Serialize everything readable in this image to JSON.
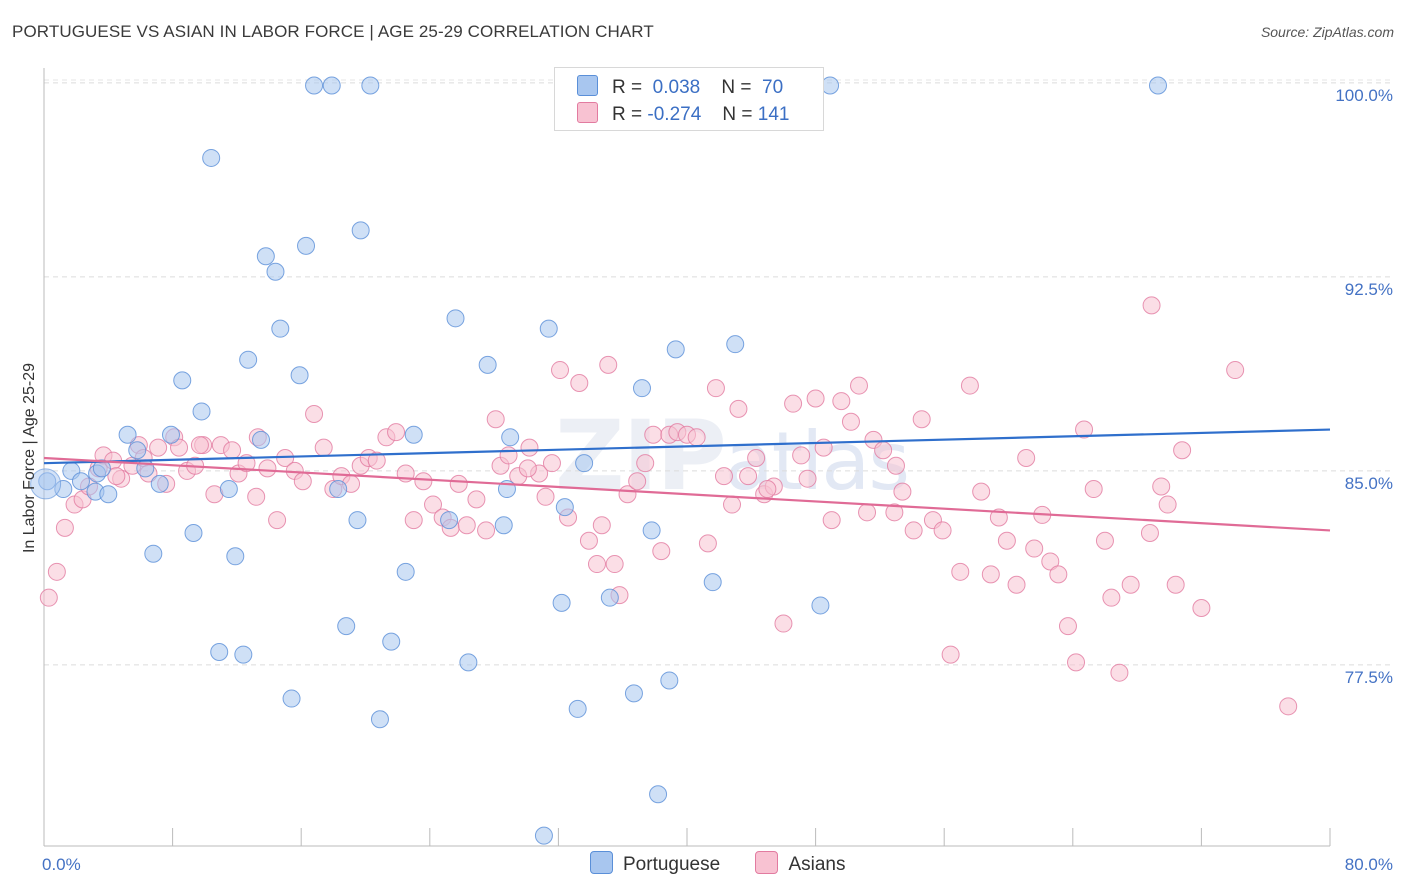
{
  "header": {
    "title": "PORTUGUESE VS ASIAN IN LABOR FORCE | AGE 25-29 CORRELATION CHART",
    "source": "Source: ZipAtlas.com"
  },
  "legend": {
    "rows": [
      {
        "r_label": "R =",
        "r_value": "0.038",
        "n_label": "N =",
        "n_value": "70",
        "color": "#a8c6ef",
        "stroke": "#5a8fd8"
      },
      {
        "r_label": "R =",
        "r_value": "-0.274",
        "n_label": "N =",
        "n_value": "141",
        "color": "#f8c2d2",
        "stroke": "#e27ba0"
      }
    ]
  },
  "bottom_legend": {
    "portuguese": "Portuguese",
    "asians": "Asians"
  },
  "watermark": {
    "zip": "ZIP",
    "atlas": "atlas"
  },
  "chart_data": {
    "type": "scatter",
    "title": "PORTUGUESE VS ASIAN IN LABOR FORCE | AGE 25-29 CORRELATION CHART",
    "xlabel": "",
    "ylabel": "In Labor Force | Age 25-29",
    "xlim": [
      0,
      80
    ],
    "ylim": [
      70.5,
      100.5
    ],
    "x_tick_labels": [
      "0.0%",
      "80.0%"
    ],
    "y_ticks": [
      77.5,
      85.0,
      92.5,
      100.0
    ],
    "y_tick_labels": [
      "77.5%",
      "85.0%",
      "92.5%",
      "100.0%"
    ],
    "grid": true,
    "series": [
      {
        "name": "Portuguese",
        "color": "#a8c6ef",
        "stroke": "#5a8fd8",
        "trend": {
          "x0": 0,
          "y0": 85.3,
          "x1": 80,
          "y1": 86.6,
          "color": "#2f6fcc"
        },
        "points": [
          [
            0.2,
            84.6
          ],
          [
            1.2,
            84.3
          ],
          [
            1.7,
            85.0
          ],
          [
            2.3,
            84.6
          ],
          [
            3.2,
            84.2
          ],
          [
            3.3,
            84.9
          ],
          [
            3.6,
            85.1
          ],
          [
            4.0,
            84.1
          ],
          [
            5.2,
            86.4
          ],
          [
            5.8,
            85.8
          ],
          [
            6.3,
            85.1
          ],
          [
            6.8,
            81.8
          ],
          [
            7.2,
            84.5
          ],
          [
            7.9,
            86.4
          ],
          [
            8.6,
            88.5
          ],
          [
            9.3,
            82.6
          ],
          [
            9.8,
            87.3
          ],
          [
            10.4,
            97.1
          ],
          [
            10.9,
            78.0
          ],
          [
            11.5,
            84.3
          ],
          [
            11.9,
            81.7
          ],
          [
            12.4,
            77.9
          ],
          [
            12.7,
            89.3
          ],
          [
            13.5,
            86.2
          ],
          [
            13.8,
            93.3
          ],
          [
            14.4,
            92.7
          ],
          [
            14.7,
            90.5
          ],
          [
            15.4,
            76.2
          ],
          [
            15.9,
            88.7
          ],
          [
            16.3,
            93.7
          ],
          [
            16.8,
            99.9
          ],
          [
            17.9,
            99.9
          ],
          [
            18.3,
            84.3
          ],
          [
            18.8,
            79.0
          ],
          [
            19.5,
            83.1
          ],
          [
            19.7,
            94.3
          ],
          [
            20.3,
            99.9
          ],
          [
            20.9,
            75.4
          ],
          [
            21.6,
            78.4
          ],
          [
            22.5,
            81.1
          ],
          [
            23.0,
            86.4
          ],
          [
            25.2,
            83.1
          ],
          [
            25.6,
            90.9
          ],
          [
            26.4,
            77.6
          ],
          [
            27.6,
            89.1
          ],
          [
            28.6,
            82.9
          ],
          [
            28.8,
            84.3
          ],
          [
            29.0,
            86.3
          ],
          [
            31.1,
            70.9
          ],
          [
            31.4,
            90.5
          ],
          [
            32.2,
            79.9
          ],
          [
            32.4,
            83.6
          ],
          [
            33.2,
            75.8
          ],
          [
            33.6,
            85.3
          ],
          [
            34.9,
            99.9
          ],
          [
            35.2,
            80.1
          ],
          [
            36.7,
            76.4
          ],
          [
            37.2,
            88.2
          ],
          [
            37.8,
            82.7
          ],
          [
            38.2,
            72.5
          ],
          [
            38.9,
            76.9
          ],
          [
            39.3,
            89.7
          ],
          [
            41.6,
            80.7
          ],
          [
            43.0,
            89.9
          ],
          [
            48.3,
            79.8
          ],
          [
            48.9,
            99.9
          ],
          [
            69.3,
            99.9
          ]
        ]
      },
      {
        "name": "Asians",
        "color": "#f8c2d2",
        "stroke": "#e27ba0",
        "trend": {
          "x0": 0,
          "y0": 85.5,
          "x1": 80,
          "y1": 82.7,
          "color": "#e06b96"
        },
        "points": [
          [
            0.3,
            80.1
          ],
          [
            0.8,
            81.1
          ],
          [
            1.3,
            82.8
          ],
          [
            1.9,
            83.7
          ],
          [
            2.4,
            83.9
          ],
          [
            2.8,
            84.4
          ],
          [
            3.4,
            85.1
          ],
          [
            3.7,
            85.6
          ],
          [
            4.3,
            85.4
          ],
          [
            4.8,
            84.7
          ],
          [
            5.5,
            85.2
          ],
          [
            5.9,
            86.0
          ],
          [
            6.2,
            85.5
          ],
          [
            6.5,
            84.9
          ],
          [
            7.1,
            85.9
          ],
          [
            7.6,
            84.5
          ],
          [
            8.1,
            86.3
          ],
          [
            8.4,
            85.9
          ],
          [
            8.9,
            85.0
          ],
          [
            9.4,
            85.2
          ],
          [
            9.9,
            86.0
          ],
          [
            10.6,
            84.1
          ],
          [
            11.0,
            86.0
          ],
          [
            11.7,
            85.8
          ],
          [
            12.1,
            84.9
          ],
          [
            12.6,
            85.3
          ],
          [
            13.2,
            84.0
          ],
          [
            13.9,
            85.1
          ],
          [
            14.5,
            83.1
          ],
          [
            15.0,
            85.5
          ],
          [
            15.6,
            85.0
          ],
          [
            16.1,
            84.6
          ],
          [
            16.8,
            87.2
          ],
          [
            17.4,
            85.9
          ],
          [
            18.0,
            84.3
          ],
          [
            18.5,
            84.8
          ],
          [
            19.1,
            84.5
          ],
          [
            19.7,
            85.2
          ],
          [
            20.2,
            85.5
          ],
          [
            20.7,
            85.4
          ],
          [
            21.3,
            86.3
          ],
          [
            21.9,
            86.5
          ],
          [
            22.5,
            84.9
          ],
          [
            23.0,
            83.1
          ],
          [
            23.6,
            84.6
          ],
          [
            24.2,
            83.7
          ],
          [
            24.8,
            83.2
          ],
          [
            25.3,
            82.8
          ],
          [
            25.8,
            84.5
          ],
          [
            26.3,
            82.9
          ],
          [
            26.9,
            83.9
          ],
          [
            27.5,
            82.7
          ],
          [
            28.1,
            87.0
          ],
          [
            28.4,
            85.2
          ],
          [
            28.9,
            85.6
          ],
          [
            29.5,
            84.8
          ],
          [
            30.2,
            85.9
          ],
          [
            30.8,
            84.9
          ],
          [
            31.2,
            84.0
          ],
          [
            31.6,
            85.3
          ],
          [
            32.1,
            88.9
          ],
          [
            32.6,
            83.2
          ],
          [
            33.3,
            88.4
          ],
          [
            33.9,
            82.3
          ],
          [
            34.4,
            81.4
          ],
          [
            34.7,
            82.9
          ],
          [
            35.1,
            89.1
          ],
          [
            35.5,
            81.4
          ],
          [
            35.8,
            80.2
          ],
          [
            36.3,
            84.1
          ],
          [
            36.9,
            84.6
          ],
          [
            37.4,
            85.3
          ],
          [
            37.9,
            86.4
          ],
          [
            38.4,
            81.9
          ],
          [
            38.9,
            86.4
          ],
          [
            39.4,
            86.5
          ],
          [
            40.0,
            86.4
          ],
          [
            40.6,
            86.3
          ],
          [
            41.3,
            82.2
          ],
          [
            41.8,
            88.2
          ],
          [
            42.3,
            84.8
          ],
          [
            42.8,
            83.7
          ],
          [
            43.2,
            87.4
          ],
          [
            43.8,
            84.8
          ],
          [
            44.3,
            85.5
          ],
          [
            44.8,
            84.1
          ],
          [
            45.4,
            84.4
          ],
          [
            46.0,
            79.1
          ],
          [
            46.6,
            87.6
          ],
          [
            47.1,
            85.6
          ],
          [
            47.5,
            84.7
          ],
          [
            48.0,
            87.8
          ],
          [
            48.5,
            85.9
          ],
          [
            49.0,
            83.1
          ],
          [
            49.6,
            87.7
          ],
          [
            50.2,
            86.9
          ],
          [
            50.7,
            88.3
          ],
          [
            51.2,
            83.4
          ],
          [
            51.6,
            86.2
          ],
          [
            52.2,
            85.8
          ],
          [
            52.9,
            83.4
          ],
          [
            53.4,
            84.2
          ],
          [
            54.1,
            82.7
          ],
          [
            54.6,
            87.0
          ],
          [
            55.3,
            83.1
          ],
          [
            55.9,
            82.7
          ],
          [
            56.4,
            77.9
          ],
          [
            57.0,
            81.1
          ],
          [
            57.6,
            88.3
          ],
          [
            58.3,
            84.2
          ],
          [
            58.9,
            81.0
          ],
          [
            59.4,
            83.2
          ],
          [
            59.9,
            82.3
          ],
          [
            60.5,
            80.6
          ],
          [
            61.1,
            85.5
          ],
          [
            61.6,
            82.0
          ],
          [
            62.1,
            83.3
          ],
          [
            62.6,
            81.5
          ],
          [
            63.1,
            81.0
          ],
          [
            63.7,
            79.0
          ],
          [
            64.2,
            77.6
          ],
          [
            64.7,
            86.6
          ],
          [
            65.3,
            84.3
          ],
          [
            66.0,
            82.3
          ],
          [
            66.4,
            80.1
          ],
          [
            66.9,
            77.2
          ],
          [
            67.6,
            80.6
          ],
          [
            68.8,
            82.6
          ],
          [
            68.9,
            91.4
          ],
          [
            69.5,
            84.4
          ],
          [
            69.9,
            83.7
          ],
          [
            70.4,
            80.6
          ],
          [
            70.8,
            85.8
          ],
          [
            72.0,
            79.7
          ],
          [
            74.1,
            88.9
          ],
          [
            77.4,
            75.9
          ],
          [
            4.5,
            84.8
          ],
          [
            9.7,
            86.0
          ],
          [
            13.3,
            86.3
          ],
          [
            30.1,
            85.1
          ],
          [
            45.0,
            84.3
          ],
          [
            53.0,
            85.2
          ]
        ]
      }
    ]
  }
}
